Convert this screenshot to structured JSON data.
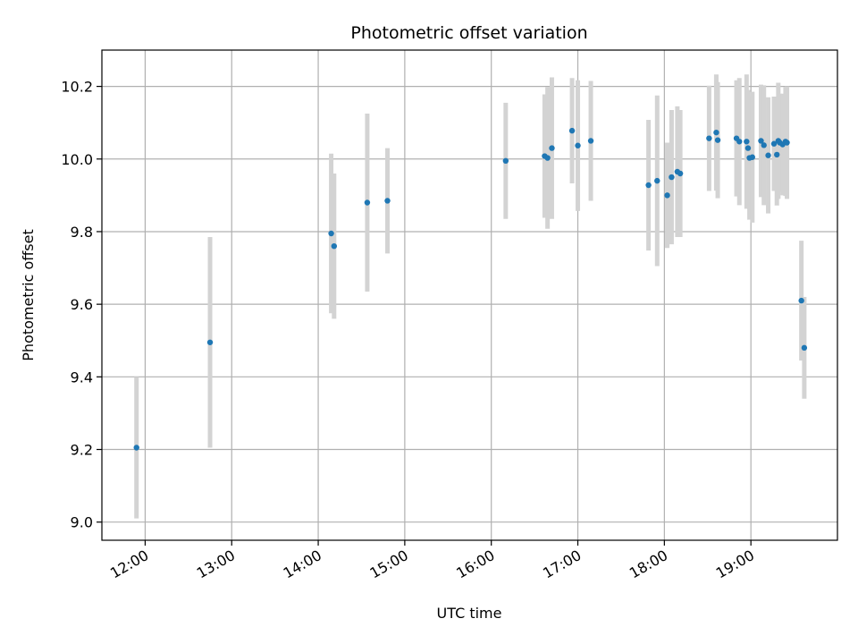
{
  "chart_data": {
    "type": "scatter",
    "title": "Photometric offset variation",
    "xlabel": "UTC time",
    "ylabel": "Photometric offset",
    "xlim": [
      "11:30",
      "20:00"
    ],
    "ylim": [
      8.95,
      10.3
    ],
    "grid": true,
    "x_ticks": [
      "12:00",
      "13:00",
      "14:00",
      "15:00",
      "16:00",
      "17:00",
      "18:00",
      "19:00"
    ],
    "y_ticks": [
      "9.0",
      "9.2",
      "9.4",
      "9.6",
      "9.8",
      "10.0",
      "10.2"
    ],
    "colors": {
      "point": "#1f77b4",
      "errorbar": "#d3d3d3",
      "grid": "#b0b0b0"
    },
    "points": [
      {
        "x": "11:54",
        "y": 9.205,
        "err": 0.195
      },
      {
        "x": "12:45",
        "y": 9.495,
        "err": 0.29
      },
      {
        "x": "14:09",
        "y": 9.795,
        "err": 0.22
      },
      {
        "x": "14:11",
        "y": 9.76,
        "err": 0.2
      },
      {
        "x": "14:34",
        "y": 9.88,
        "err": 0.245
      },
      {
        "x": "14:48",
        "y": 9.885,
        "err": 0.145
      },
      {
        "x": "16:10",
        "y": 9.995,
        "err": 0.16
      },
      {
        "x": "16:37",
        "y": 10.008,
        "err": 0.17
      },
      {
        "x": "16:39",
        "y": 10.003,
        "err": 0.195
      },
      {
        "x": "16:42",
        "y": 10.03,
        "err": 0.195
      },
      {
        "x": "16:56",
        "y": 10.078,
        "err": 0.145
      },
      {
        "x": "17:00",
        "y": 10.037,
        "err": 0.18
      },
      {
        "x": "17:09",
        "y": 10.05,
        "err": 0.165
      },
      {
        "x": "17:49",
        "y": 9.928,
        "err": 0.18
      },
      {
        "x": "17:55",
        "y": 9.94,
        "err": 0.235
      },
      {
        "x": "18:02",
        "y": 9.9,
        "err": 0.145
      },
      {
        "x": "18:05",
        "y": 9.95,
        "err": 0.185
      },
      {
        "x": "18:09",
        "y": 9.965,
        "err": 0.18
      },
      {
        "x": "18:11",
        "y": 9.96,
        "err": 0.175
      },
      {
        "x": "18:31",
        "y": 10.057,
        "err": 0.145
      },
      {
        "x": "18:36",
        "y": 10.073,
        "err": 0.16
      },
      {
        "x": "18:37",
        "y": 10.052,
        "err": 0.16
      },
      {
        "x": "18:50",
        "y": 10.057,
        "err": 0.16
      },
      {
        "x": "18:52",
        "y": 10.048,
        "err": 0.175
      },
      {
        "x": "18:57",
        "y": 10.048,
        "err": 0.185
      },
      {
        "x": "18:58",
        "y": 10.03,
        "err": 0.16
      },
      {
        "x": "18:59",
        "y": 10.003,
        "err": 0.17
      },
      {
        "x": "19:01",
        "y": 10.005,
        "err": 0.18
      },
      {
        "x": "19:07",
        "y": 10.05,
        "err": 0.155
      },
      {
        "x": "19:09",
        "y": 10.038,
        "err": 0.165
      },
      {
        "x": "19:12",
        "y": 10.01,
        "err": 0.16
      },
      {
        "x": "19:16",
        "y": 10.042,
        "err": 0.13
      },
      {
        "x": "19:18",
        "y": 10.012,
        "err": 0.14
      },
      {
        "x": "19:19",
        "y": 10.05,
        "err": 0.16
      },
      {
        "x": "19:20",
        "y": 10.045,
        "err": 0.135
      },
      {
        "x": "19:22",
        "y": 10.04,
        "err": 0.14
      },
      {
        "x": "19:24",
        "y": 10.048,
        "err": 0.15
      },
      {
        "x": "19:25",
        "y": 10.045,
        "err": 0.155
      },
      {
        "x": "19:35",
        "y": 9.61,
        "err": 0.165
      },
      {
        "x": "19:37",
        "y": 9.48,
        "err": 0.14
      }
    ]
  }
}
